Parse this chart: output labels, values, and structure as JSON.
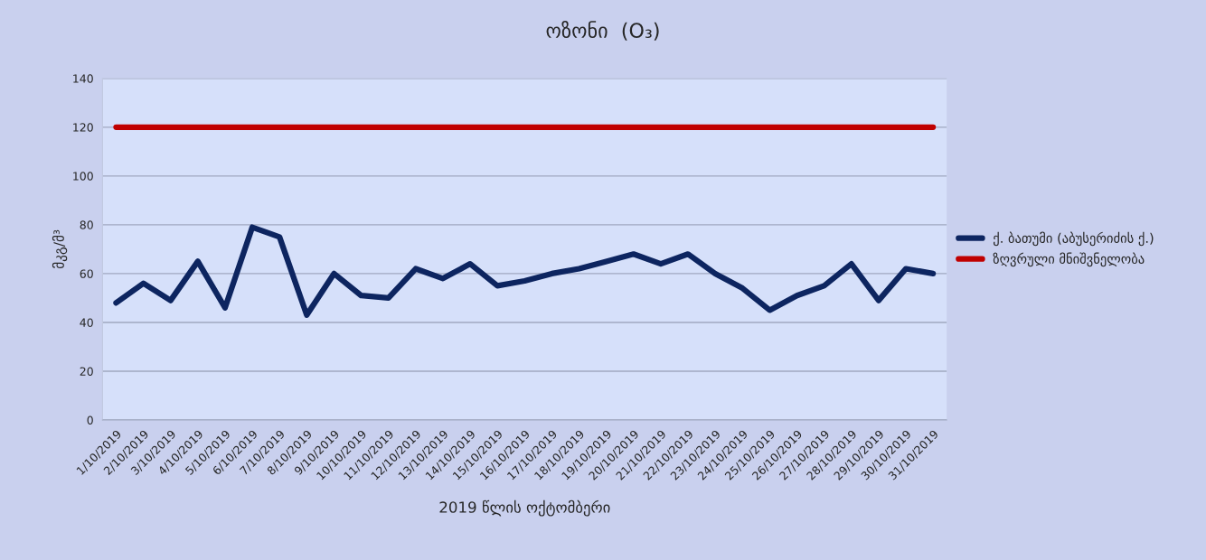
{
  "chart_data": {
    "type": "line",
    "title": "ოზონი  (O₃)",
    "xlabel": "2019 წლის ოქტომბერი",
    "ylabel": "მკგ/მ³",
    "categories": [
      "1/10/2019",
      "2/10/2019",
      "3/10/2019",
      "4/10/2019",
      "5/10/2019",
      "6/10/2019",
      "7/10/2019",
      "8/10/2019",
      "9/10/2019",
      "10/10/2019",
      "11/10/2019",
      "12/10/2019",
      "13/10/2019",
      "14/10/2019",
      "15/10/2019",
      "16/10/2019",
      "17/10/2019",
      "18/10/2019",
      "19/10/2019",
      "20/10/2019",
      "21/10/2019",
      "22/10/2019",
      "23/10/2019",
      "24/10/2019",
      "25/10/2019",
      "26/10/2019",
      "27/10/2019",
      "28/10/2019",
      "29/10/2019",
      "30/10/2019",
      "31/10/2019"
    ],
    "series": [
      {
        "name": "ქ. ბათუმი (აბუსერიძის ქ.)",
        "color": "#0d2560",
        "values": [
          48,
          56,
          49,
          65,
          46,
          79,
          75,
          43,
          60,
          51,
          50,
          62,
          58,
          64,
          55,
          57,
          60,
          62,
          65,
          68,
          64,
          68,
          60,
          54,
          45,
          51,
          55,
          64,
          49,
          62,
          60
        ]
      },
      {
        "name": "ზღვრული მნიშვნელობა",
        "color": "#c00000",
        "values": [
          120,
          120,
          120,
          120,
          120,
          120,
          120,
          120,
          120,
          120,
          120,
          120,
          120,
          120,
          120,
          120,
          120,
          120,
          120,
          120,
          120,
          120,
          120,
          120,
          120,
          120,
          120,
          120,
          120,
          120,
          120
        ]
      }
    ],
    "ylim": [
      0,
      140
    ],
    "yticks": [
      0,
      20,
      40,
      60,
      80,
      100,
      120,
      140
    ],
    "grid": "y",
    "legend": "right",
    "marker": "none",
    "line_style": "solid"
  }
}
